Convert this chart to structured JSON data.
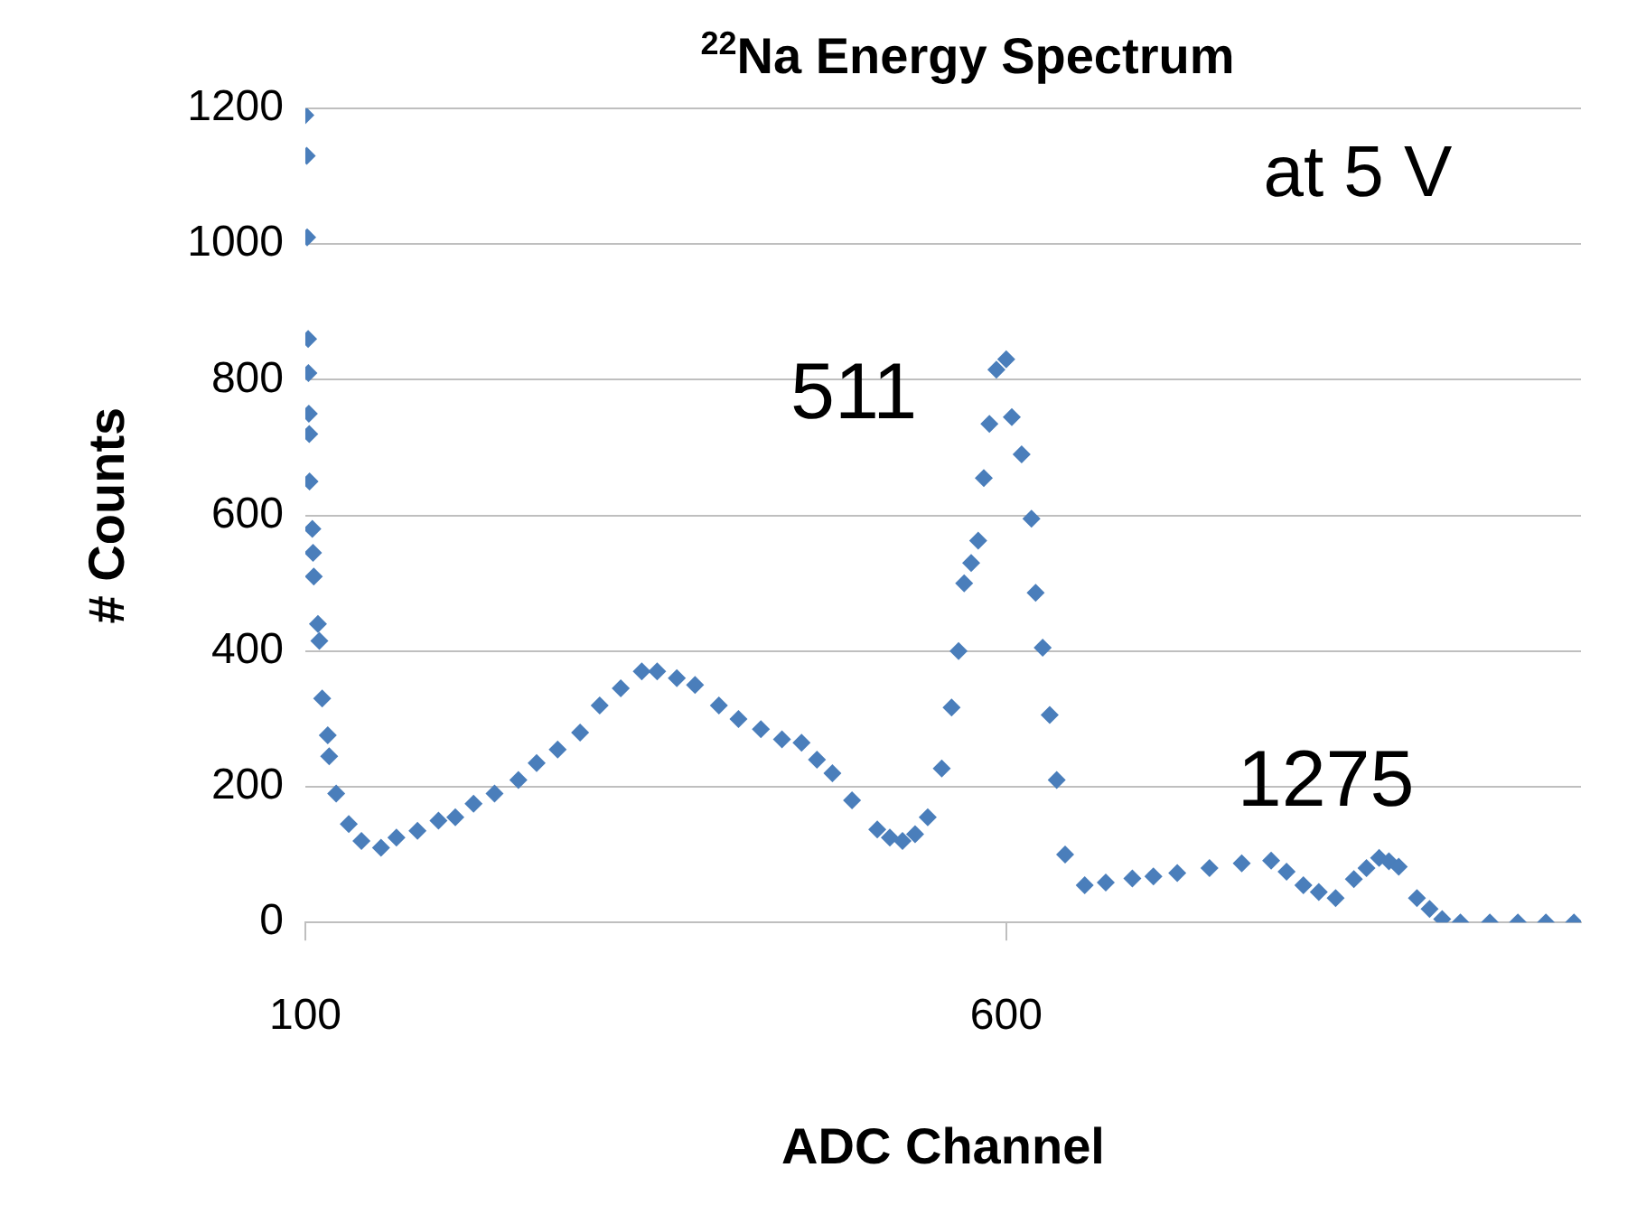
{
  "chart_data": {
    "type": "scatter",
    "title": "$^{22}$Na Energy Spectrum",
    "xlabel": "ADC Channel",
    "ylabel": "# Counts",
    "annotations": [
      "at 5 V",
      "511",
      "1275"
    ],
    "x": [
      100,
      101,
      101.3,
      102,
      102.2,
      102.5,
      102.8,
      103,
      105,
      105.5,
      106,
      109,
      110,
      112,
      116,
      117,
      122,
      131,
      140,
      154,
      165,
      180,
      195,
      207,
      220,
      235,
      252,
      265,
      280,
      296,
      310,
      325,
      340,
      351,
      365,
      378,
      395,
      409,
      425,
      440,
      454,
      465,
      476,
      490,
      508,
      517,
      526,
      535,
      544,
      554,
      561,
      566,
      570,
      575,
      580,
      584,
      588,
      593,
      600,
      604,
      611,
      618,
      621,
      626,
      631,
      636,
      642,
      656,
      671,
      690,
      705,
      722,
      745,
      768,
      789,
      800,
      812,
      823,
      835,
      848,
      857,
      866,
      873,
      880,
      893,
      902,
      911,
      924,
      945,
      965,
      985,
      1005
    ],
    "series": [
      {
        "color": "#4a7ebb",
        "values": [
          1190,
          1130,
          1010,
          860,
          810,
          750,
          720,
          650,
          580,
          545,
          510,
          440,
          415,
          330,
          276,
          245,
          190,
          145,
          120,
          110,
          125,
          135,
          150,
          155,
          175,
          190,
          210,
          235,
          255,
          280,
          320,
          345,
          370,
          370,
          360,
          350,
          320,
          300,
          285,
          270,
          265,
          240,
          220,
          180,
          137,
          125,
          120,
          130,
          155,
          227,
          317,
          400,
          500,
          530,
          563,
          655,
          735,
          815,
          830,
          745,
          690,
          595,
          486,
          405,
          306,
          210,
          100,
          55,
          59,
          65,
          68,
          73,
          80,
          87,
          91,
          75,
          55,
          45,
          36,
          64,
          80,
          95,
          90,
          82,
          36,
          20,
          5,
          0,
          0,
          0,
          0,
          0
        ]
      }
    ],
    "xlim": [
      100,
      1010
    ],
    "xticks": [
      100,
      600
    ],
    "ylim": [
      0,
      1200
    ],
    "yticks": [
      0,
      200,
      400,
      600,
      800,
      1000,
      1200
    ],
    "grid": "y",
    "marker": "diamond",
    "legend": false
  }
}
